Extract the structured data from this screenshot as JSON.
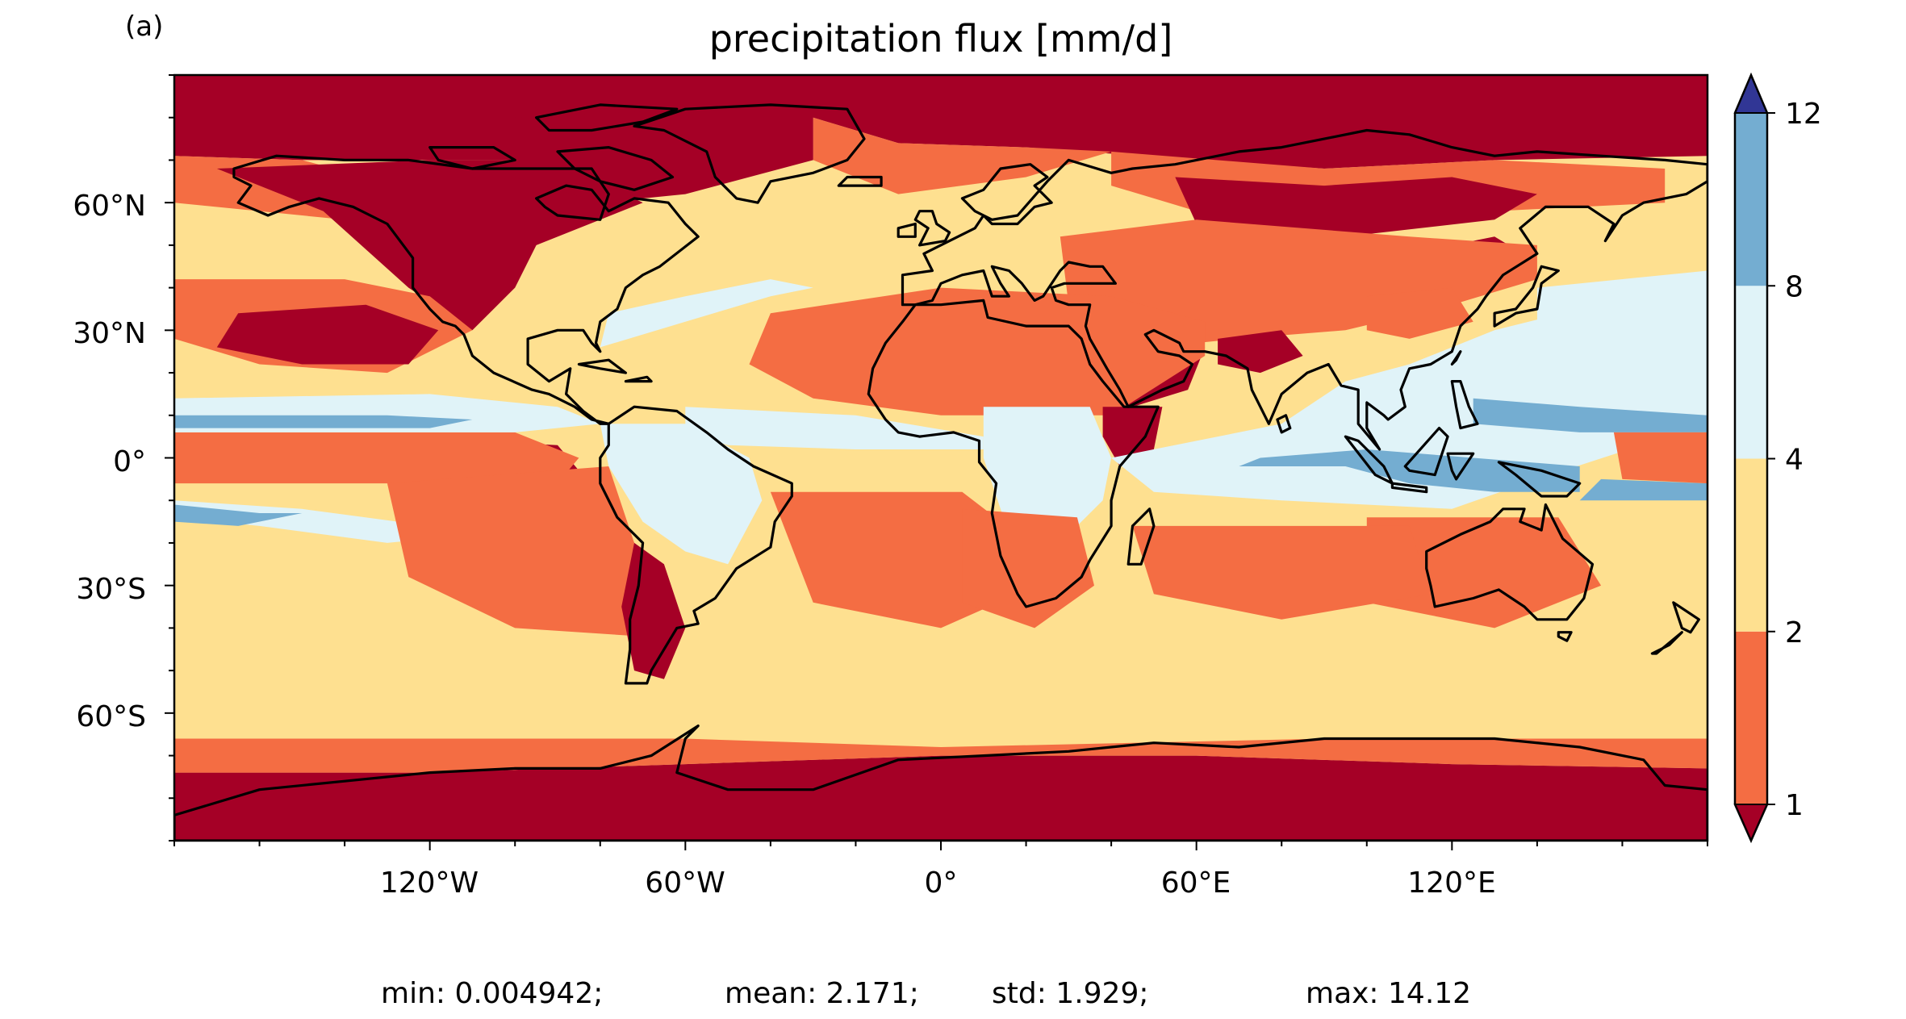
{
  "panel_label": "(a)",
  "title": "precipitation flux [mm/d]",
  "colors": {
    "lt1": "#a50026",
    "b1_2": "#f46d43",
    "b2_4": "#fee090",
    "b4_8": "#e0f3f8",
    "b8_12": "#74add1",
    "gt12": "#313695",
    "coast": "#000000"
  },
  "y_ticks": [
    "60°N",
    "30°N",
    "0°",
    "30°S",
    "60°S"
  ],
  "x_ticks": [
    "120°W",
    "60°W",
    "0°",
    "60°E",
    "120°E"
  ],
  "colorbar": {
    "boundaries": [
      1,
      2,
      4,
      8,
      12
    ],
    "labels": [
      "1",
      "2",
      "4",
      "8",
      "12"
    ],
    "extend": "both"
  },
  "stats": {
    "min": "min: 0.004942;",
    "mean": "mean: 2.171;",
    "std": "std: 1.929;",
    "max": "max: 14.12"
  }
}
